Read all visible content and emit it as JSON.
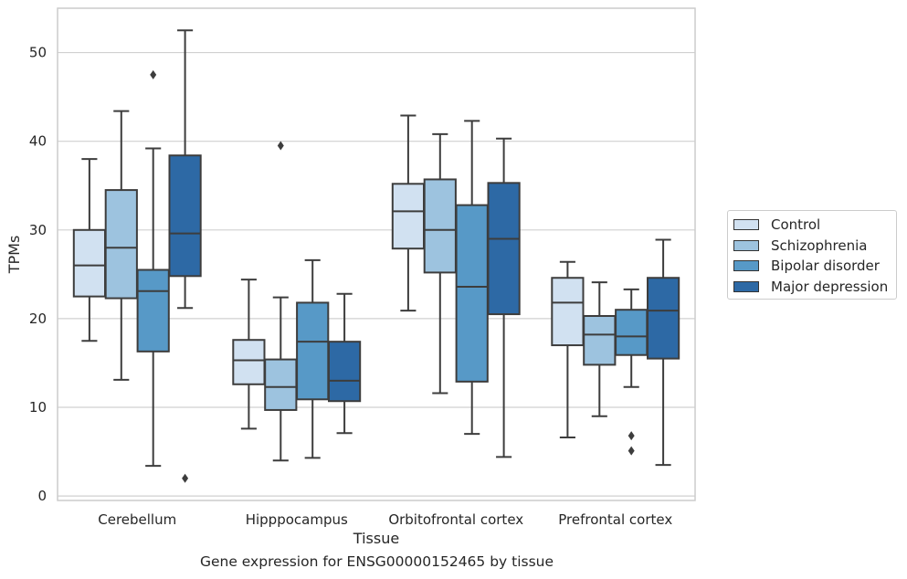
{
  "chart_data": {
    "type": "box",
    "xlabel": "Tissue",
    "ylabel": "TPMs",
    "ylim": [
      -0.5,
      55
    ],
    "yticks": [
      0,
      10,
      20,
      30,
      40,
      50
    ],
    "grid": "horizontal",
    "legend_position": "right",
    "categories": [
      "Cerebellum",
      "Hipppocampus",
      "Orbitofrontal cortex",
      "Prefrontal cortex"
    ],
    "series": [
      {
        "name": "Control",
        "color": "#d1e1f1",
        "boxes": [
          {
            "whisker_low": 17.5,
            "q1": 22.5,
            "median": 26.0,
            "q3": 30.0,
            "whisker_high": 38.0,
            "outliers": []
          },
          {
            "whisker_low": 7.6,
            "q1": 12.6,
            "median": 15.3,
            "q3": 17.6,
            "whisker_high": 24.4,
            "outliers": []
          },
          {
            "whisker_low": 20.9,
            "q1": 27.9,
            "median": 32.1,
            "q3": 35.2,
            "whisker_high": 42.9,
            "outliers": []
          },
          {
            "whisker_low": 6.6,
            "q1": 17.0,
            "median": 21.8,
            "q3": 24.6,
            "whisker_high": 26.4,
            "outliers": []
          }
        ]
      },
      {
        "name": "Schizophrenia",
        "color": "#9dc3df",
        "boxes": [
          {
            "whisker_low": 13.1,
            "q1": 22.3,
            "median": 28.0,
            "q3": 34.5,
            "whisker_high": 43.4,
            "outliers": []
          },
          {
            "whisker_low": 4.0,
            "q1": 9.7,
            "median": 12.3,
            "q3": 15.4,
            "whisker_high": 22.4,
            "outliers": [
              39.5
            ]
          },
          {
            "whisker_low": 11.6,
            "q1": 25.2,
            "median": 30.0,
            "q3": 35.7,
            "whisker_high": 40.8,
            "outliers": []
          },
          {
            "whisker_low": 9.0,
            "q1": 14.8,
            "median": 18.2,
            "q3": 20.3,
            "whisker_high": 24.1,
            "outliers": []
          }
        ]
      },
      {
        "name": "Bipolar disorder",
        "color": "#5799c7",
        "boxes": [
          {
            "whisker_low": 3.4,
            "q1": 16.3,
            "median": 23.1,
            "q3": 25.5,
            "whisker_high": 39.2,
            "outliers": [
              47.5
            ]
          },
          {
            "whisker_low": 4.3,
            "q1": 10.9,
            "median": 17.4,
            "q3": 21.8,
            "whisker_high": 26.6,
            "outliers": []
          },
          {
            "whisker_low": 7.0,
            "q1": 12.9,
            "median": 23.6,
            "q3": 32.8,
            "whisker_high": 42.3,
            "outliers": []
          },
          {
            "whisker_low": 12.3,
            "q1": 15.9,
            "median": 18.0,
            "q3": 21.0,
            "whisker_high": 23.3,
            "outliers": [
              6.8,
              5.1
            ]
          }
        ]
      },
      {
        "name": "Major depression",
        "color": "#2d69a5",
        "boxes": [
          {
            "whisker_low": 21.2,
            "q1": 24.8,
            "median": 29.6,
            "q3": 38.4,
            "whisker_high": 52.5,
            "outliers": [
              2.0
            ]
          },
          {
            "whisker_low": 7.1,
            "q1": 10.7,
            "median": 13.0,
            "q3": 17.4,
            "whisker_high": 22.8,
            "outliers": []
          },
          {
            "whisker_low": 4.4,
            "q1": 20.5,
            "median": 29.0,
            "q3": 35.3,
            "whisker_high": 40.3,
            "outliers": []
          },
          {
            "whisker_low": 3.5,
            "q1": 15.5,
            "median": 20.9,
            "q3": 24.6,
            "whisker_high": 28.9,
            "outliers": []
          }
        ]
      }
    ],
    "caption": "Gene expression for ENSG00000152465 by tissue"
  }
}
